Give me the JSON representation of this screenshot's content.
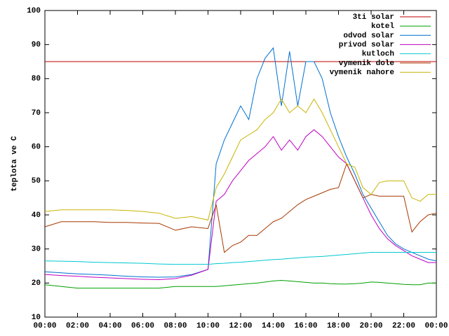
{
  "chart_data": {
    "type": "line",
    "y_label": "teplota ve C",
    "x": [
      0,
      1,
      2,
      3,
      4,
      5,
      6,
      7,
      8,
      9,
      10,
      10.5,
      11,
      11.5,
      12,
      12.5,
      13,
      13.5,
      14,
      14.5,
      15,
      15.5,
      16,
      16.5,
      17,
      17.5,
      18,
      18.5,
      19,
      19.5,
      20,
      20.5,
      21,
      21.5,
      22,
      22.5,
      23,
      23.5,
      24
    ],
    "xlim": [
      0,
      24
    ],
    "xticks": [
      {
        "value": 0,
        "label": "00:00"
      },
      {
        "value": 2,
        "label": "02:00"
      },
      {
        "value": 4,
        "label": "04:00"
      },
      {
        "value": 6,
        "label": "06:00"
      },
      {
        "value": 8,
        "label": "08:00"
      },
      {
        "value": 10,
        "label": "10:00"
      },
      {
        "value": 12,
        "label": "12:00"
      },
      {
        "value": 14,
        "label": "14:00"
      },
      {
        "value": 16,
        "label": "16:00"
      },
      {
        "value": 18,
        "label": "18:00"
      },
      {
        "value": 20,
        "label": "20:00"
      },
      {
        "value": 22,
        "label": "22:00"
      },
      {
        "value": 24,
        "label": "00:00"
      }
    ],
    "ylim": [
      10,
      100
    ],
    "yticks": [
      10,
      20,
      30,
      40,
      50,
      60,
      70,
      80,
      90,
      100
    ],
    "legend": "top-right",
    "series": [
      {
        "name": "3ti solar",
        "color": "#c00000",
        "values": [
          85,
          85,
          85,
          85,
          85,
          85,
          85,
          85,
          85,
          85,
          85,
          85,
          85,
          85,
          85,
          85,
          85,
          85,
          85,
          85,
          85,
          85,
          85,
          85,
          85,
          85,
          85,
          85,
          85,
          85,
          85,
          85,
          85,
          85,
          85,
          85,
          85,
          85,
          85
        ]
      },
      {
        "name": "kotel",
        "color": "#00a000",
        "values": [
          19.5,
          19,
          18.5,
          18.5,
          18.5,
          18.5,
          18.5,
          18.5,
          19,
          19,
          19,
          19,
          19.2,
          19.4,
          19.6,
          19.8,
          20,
          20.3,
          20.6,
          20.8,
          20.6,
          20.4,
          20.2,
          20,
          20,
          19.8,
          19.7,
          19.7,
          19.8,
          20,
          20.3,
          20.2,
          20,
          19.8,
          19.6,
          19.5,
          19.5,
          20,
          20
        ]
      },
      {
        "name": "odvod solar",
        "color": "#0070d0",
        "values": [
          23.3,
          23,
          22.7,
          22.5,
          22.3,
          22,
          21.8,
          21.7,
          21.8,
          22.5,
          24,
          55,
          62,
          67,
          72,
          68,
          80,
          86,
          89,
          72,
          88,
          72,
          85,
          85,
          80,
          70,
          63,
          57,
          52,
          46,
          42,
          38,
          34,
          31.5,
          30,
          29,
          28,
          27,
          26.5
        ]
      },
      {
        "name": "privod solar",
        "color": "#c000c0",
        "values": [
          22.5,
          22.2,
          22,
          21.7,
          21.5,
          21.3,
          21.1,
          21,
          21.3,
          22.3,
          24,
          44,
          46,
          50,
          53,
          56,
          58,
          60,
          63,
          59,
          62,
          59,
          63,
          65,
          63,
          60,
          57,
          55,
          50,
          45,
          40,
          36,
          33,
          31,
          29.5,
          28,
          27,
          26,
          26
        ]
      },
      {
        "name": "kutloch",
        "color": "#00c8d0",
        "values": [
          26.5,
          26.4,
          26.3,
          26.1,
          26,
          25.9,
          25.8,
          25.6,
          25.5,
          25.5,
          25.5,
          25.7,
          25.8,
          26,
          26.1,
          26.3,
          26.5,
          26.7,
          26.9,
          27,
          27.2,
          27.4,
          27.6,
          27.7,
          27.8,
          28,
          28.2,
          28.4,
          28.6,
          28.8,
          29,
          29,
          29,
          29,
          29,
          29,
          29,
          29,
          29
        ]
      },
      {
        "name": "vymenik dole",
        "color": "#a83800",
        "values": [
          36.5,
          38,
          38,
          38,
          37.8,
          37.8,
          37.6,
          37.5,
          35.5,
          36.5,
          36,
          43,
          29,
          31,
          32,
          34,
          34,
          36,
          38,
          39,
          41,
          43,
          44.5,
          45.5,
          46.5,
          47.5,
          48,
          55,
          50,
          45,
          46,
          45.5,
          45.5,
          45.5,
          45.5,
          35,
          38,
          40,
          40.5
        ]
      },
      {
        "name": "vymenik nahore",
        "color": "#c8b400",
        "values": [
          41,
          41.5,
          41.5,
          41.5,
          41.5,
          41.3,
          41,
          40.5,
          39,
          39.5,
          38.5,
          48,
          52,
          57,
          62,
          63.5,
          65,
          68,
          70,
          74,
          70,
          72,
          70,
          74,
          70,
          65,
          60,
          55,
          54,
          48,
          46,
          49.5,
          50,
          50,
          50,
          45,
          44,
          46,
          46
        ]
      }
    ]
  }
}
